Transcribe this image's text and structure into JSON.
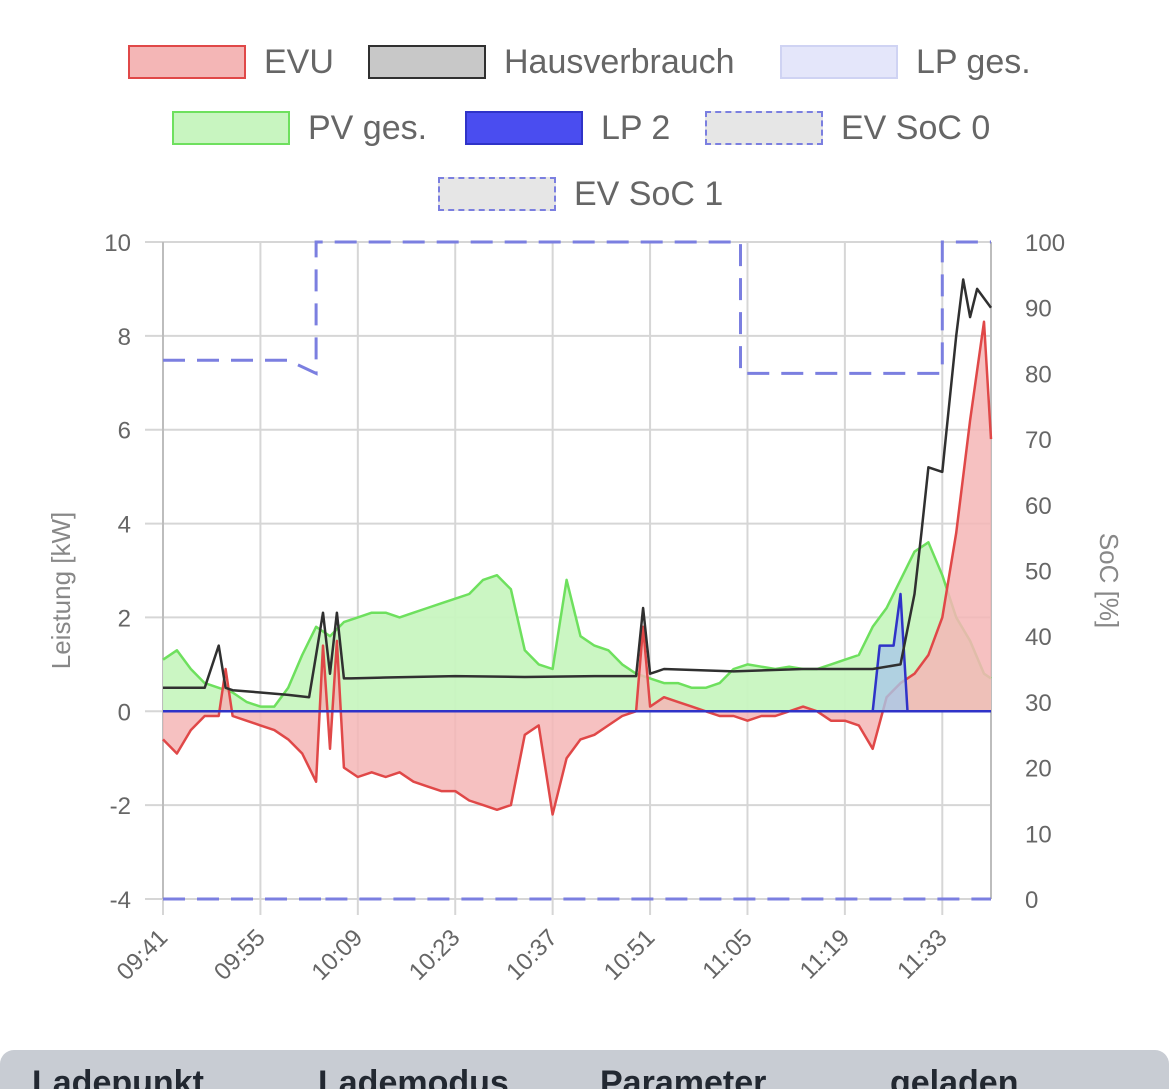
{
  "chart_data": {
    "type": "line",
    "legend_position": "top",
    "legend": [
      {
        "name": "EVU",
        "fill": "#f4b6b6",
        "stroke": "#e04848",
        "dashed": false
      },
      {
        "name": "Hausverbrauch",
        "fill": "#c8c8c8",
        "stroke": "#303030",
        "dashed": false
      },
      {
        "name": "LP ges.",
        "fill": "#e4e6fa",
        "stroke": "#cfd3f3",
        "dashed": false
      },
      {
        "name": "PV ges.",
        "fill": "#c8f5c0",
        "stroke": "#6ee05e",
        "dashed": false
      },
      {
        "name": "LP 2",
        "fill": "#4a4df0",
        "stroke": "#2f33c8",
        "dashed": false
      },
      {
        "name": "EV SoC 0",
        "fill": "#e6e6e6",
        "stroke": "#7b7fe0",
        "dashed": true
      },
      {
        "name": "EV SoC 1",
        "fill": "#e6e6e6",
        "stroke": "#7b7fe0",
        "dashed": true
      }
    ],
    "x_ticks": [
      "09:41",
      "09:55",
      "10:09",
      "10:23",
      "10:37",
      "10:51",
      "11:05",
      "11:19",
      "11:33"
    ],
    "x_range": [
      "09:41",
      "11:40"
    ],
    "y_left": {
      "label": "Leistung [kW]",
      "min": -4,
      "max": 10,
      "ticks": [
        -4,
        -2,
        0,
        2,
        4,
        6,
        8,
        10
      ]
    },
    "y_right": {
      "label": "SoC [%]",
      "min": 0,
      "max": 100,
      "ticks": [
        0,
        10,
        20,
        30,
        40,
        50,
        60,
        70,
        80,
        90,
        100
      ]
    },
    "grid": true,
    "colors": {
      "evu": "#e04848",
      "evu_fill": "#f4b6b6",
      "haus": "#303030",
      "pv": "#6ee05e",
      "pv_fill": "#c8f5c0",
      "lp": "#2f33c8",
      "lp_fill": "#a9c8e8",
      "soc": "#7b7fe0",
      "grid": "#d6d6d6",
      "tick": "#666666"
    },
    "series": [
      {
        "name": "PV ges.",
        "axis": "left",
        "x": [
          "09:41",
          "09:43",
          "09:45",
          "09:47",
          "09:49",
          "09:51",
          "09:53",
          "09:55",
          "09:57",
          "09:59",
          "10:01",
          "10:03",
          "10:05",
          "10:07",
          "10:09",
          "10:11",
          "10:13",
          "10:15",
          "10:17",
          "10:19",
          "10:21",
          "10:23",
          "10:25",
          "10:27",
          "10:29",
          "10:31",
          "10:33",
          "10:35",
          "10:37",
          "10:39",
          "10:41",
          "10:43",
          "10:45",
          "10:47",
          "10:49",
          "10:51",
          "10:53",
          "10:55",
          "10:57",
          "10:59",
          "11:01",
          "11:03",
          "11:05",
          "11:07",
          "11:09",
          "11:11",
          "11:13",
          "11:15",
          "11:17",
          "11:19",
          "11:21",
          "11:23",
          "11:25",
          "11:27",
          "11:29",
          "11:31",
          "11:33",
          "11:35",
          "11:37",
          "11:39",
          "11:40"
        ],
        "values": [
          1.1,
          1.3,
          0.9,
          0.6,
          0.5,
          0.4,
          0.2,
          0.1,
          0.1,
          0.5,
          1.2,
          1.8,
          1.6,
          1.9,
          2.0,
          2.1,
          2.1,
          2.0,
          2.1,
          2.2,
          2.3,
          2.4,
          2.5,
          2.8,
          2.9,
          2.6,
          1.3,
          1.0,
          0.9,
          2.8,
          1.6,
          1.4,
          1.3,
          1.0,
          0.8,
          0.7,
          0.6,
          0.6,
          0.5,
          0.5,
          0.6,
          0.9,
          1.0,
          0.95,
          0.9,
          0.95,
          0.9,
          0.9,
          1.0,
          1.1,
          1.2,
          1.8,
          2.2,
          2.8,
          3.4,
          3.6,
          2.9,
          2.0,
          1.5,
          0.8,
          0.7
        ]
      },
      {
        "name": "Hausverbrauch",
        "axis": "left",
        "x": [
          "09:41",
          "09:47",
          "09:49",
          "09:50",
          "09:51",
          "09:55",
          "09:59",
          "10:02",
          "10:03",
          "10:04",
          "10:05",
          "10:06",
          "10:07",
          "10:08",
          "10:13",
          "10:23",
          "10:33",
          "10:43",
          "10:49",
          "10:50",
          "10:51",
          "10:52",
          "10:53",
          "11:03",
          "11:13",
          "11:19",
          "11:23",
          "11:27",
          "11:29",
          "11:30",
          "11:31",
          "11:33",
          "11:35",
          "11:36",
          "11:37",
          "11:38",
          "11:39",
          "11:40"
        ],
        "values": [
          0.5,
          0.5,
          1.4,
          0.5,
          0.45,
          0.4,
          0.35,
          0.3,
          1.2,
          2.1,
          0.8,
          2.1,
          0.7,
          0.7,
          0.72,
          0.75,
          0.73,
          0.75,
          0.75,
          2.2,
          0.8,
          0.85,
          0.9,
          0.85,
          0.9,
          0.9,
          0.9,
          1.0,
          2.5,
          3.8,
          5.2,
          5.1,
          8.0,
          9.2,
          8.4,
          9.0,
          8.8,
          8.6
        ]
      },
      {
        "name": "EVU",
        "axis": "left",
        "x": [
          "09:41",
          "09:43",
          "09:45",
          "09:47",
          "09:49",
          "09:50",
          "09:51",
          "09:53",
          "09:55",
          "09:57",
          "09:59",
          "10:01",
          "10:03",
          "10:04",
          "10:05",
          "10:06",
          "10:07",
          "10:09",
          "10:11",
          "10:13",
          "10:15",
          "10:17",
          "10:19",
          "10:21",
          "10:23",
          "10:25",
          "10:27",
          "10:29",
          "10:31",
          "10:33",
          "10:35",
          "10:37",
          "10:39",
          "10:41",
          "10:43",
          "10:45",
          "10:47",
          "10:49",
          "10:50",
          "10:51",
          "10:53",
          "10:55",
          "10:57",
          "10:59",
          "11:01",
          "11:03",
          "11:05",
          "11:07",
          "11:09",
          "11:11",
          "11:13",
          "11:15",
          "11:17",
          "11:19",
          "11:21",
          "11:23",
          "11:25",
          "11:27",
          "11:29",
          "11:31",
          "11:33",
          "11:35",
          "11:37",
          "11:39",
          "11:40"
        ],
        "values": [
          -0.6,
          -0.9,
          -0.4,
          -0.1,
          -0.1,
          0.9,
          -0.1,
          -0.2,
          -0.3,
          -0.4,
          -0.6,
          -0.9,
          -1.5,
          1.4,
          -0.8,
          1.5,
          -1.2,
          -1.4,
          -1.3,
          -1.4,
          -1.3,
          -1.5,
          -1.6,
          -1.7,
          -1.7,
          -1.9,
          -2.0,
          -2.1,
          -2.0,
          -0.5,
          -0.3,
          -2.2,
          -1.0,
          -0.6,
          -0.5,
          -0.3,
          -0.1,
          0.0,
          1.8,
          0.1,
          0.3,
          0.2,
          0.1,
          0.0,
          -0.1,
          -0.1,
          -0.2,
          -0.1,
          -0.1,
          0.0,
          0.1,
          0.0,
          -0.2,
          -0.2,
          -0.3,
          -0.8,
          0.3,
          0.6,
          0.8,
          1.2,
          2.0,
          3.8,
          6.2,
          8.3,
          5.8
        ]
      },
      {
        "name": "LP 2",
        "axis": "left",
        "x": [
          "09:41",
          "11:23",
          "11:24",
          "11:26",
          "11:27",
          "11:28",
          "11:40"
        ],
        "values": [
          0,
          0,
          1.4,
          1.4,
          2.5,
          0,
          0
        ]
      },
      {
        "name": "EV SoC 0",
        "axis": "right",
        "x": [
          "09:41",
          "10:04",
          "10:04",
          "10:01",
          "10:02",
          "10:04",
          "11:04",
          "11:04",
          "11:33",
          "11:33",
          "11:40"
        ],
        "values": [
          0,
          0,
          0,
          0,
          0,
          0,
          0,
          0,
          0,
          0,
          0
        ]
      },
      {
        "name": "EV SoC 1",
        "axis": "right",
        "x": [
          "09:41",
          "09:59",
          "10:03",
          "10:03",
          "11:04",
          "11:04",
          "11:33",
          "11:33",
          "11:40"
        ],
        "values": [
          82,
          82,
          80,
          100,
          100,
          80,
          80,
          100,
          100
        ]
      }
    ]
  },
  "table": {
    "headers": [
      "Ladepunkt",
      "Lademodus",
      "Parameter",
      "geladen"
    ]
  }
}
